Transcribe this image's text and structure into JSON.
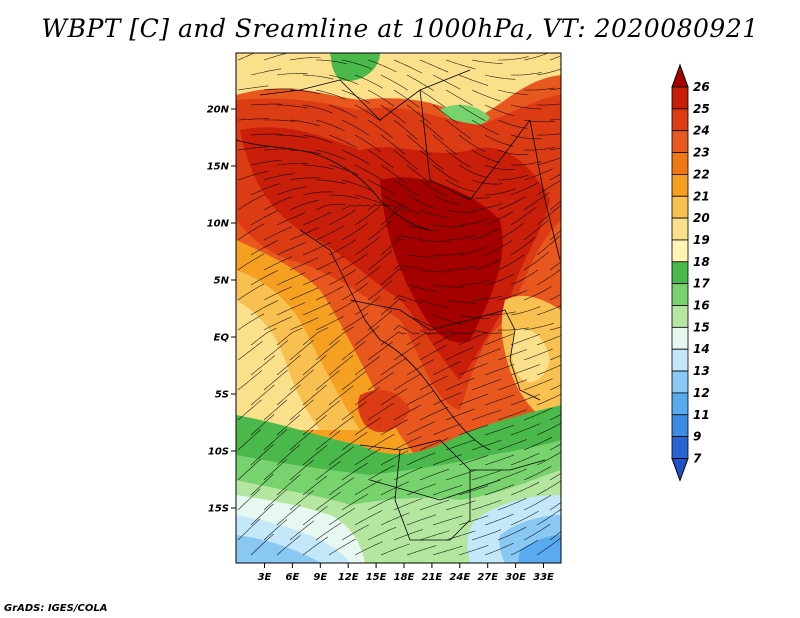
{
  "title": "WBPT [C] and Sreamline at 1000hPa, VT: 2020080921",
  "footer": "GrADS: IGES/COLA",
  "map": {
    "lat_ticks": [
      {
        "lat": 20,
        "label": "20N"
      },
      {
        "lat": 15,
        "label": "15N"
      },
      {
        "lat": 10,
        "label": "10N"
      },
      {
        "lat": 5,
        "label": "5N"
      },
      {
        "lat": 0,
        "label": "EQ"
      },
      {
        "lat": -5,
        "label": "5S"
      },
      {
        "lat": -10,
        "label": "10S"
      },
      {
        "lat": -15,
        "label": "15S"
      }
    ],
    "lon_ticks": [
      {
        "lon": 3,
        "label": "3E"
      },
      {
        "lon": 6,
        "label": "6E"
      },
      {
        "lon": 9,
        "label": "9E"
      },
      {
        "lon": 12,
        "label": "12E"
      },
      {
        "lon": 15,
        "label": "15E"
      },
      {
        "lon": 18,
        "label": "18E"
      },
      {
        "lon": 21,
        "label": "21E"
      },
      {
        "lon": 24,
        "label": "24E"
      },
      {
        "lon": 27,
        "label": "27E"
      },
      {
        "lon": 30,
        "label": "30E"
      },
      {
        "lon": 33,
        "label": "33E"
      }
    ]
  },
  "colorbar": {
    "labels": [
      "26",
      "25",
      "24",
      "23",
      "22",
      "21",
      "20",
      "19",
      "18",
      "17",
      "16",
      "15",
      "14",
      "13",
      "12",
      "11",
      "9",
      "7"
    ],
    "colors": [
      "#a50000",
      "#c81e0a",
      "#dc3c14",
      "#e8581e",
      "#f07814",
      "#f5a020",
      "#f8c050",
      "#fbe08c",
      "#fff4b4",
      "#4ab84a",
      "#78d26e",
      "#b4e6a0",
      "#e6f8f0",
      "#c4e8fa",
      "#8ac8f4",
      "#5aaaf0",
      "#3c8ce6",
      "#2864d2",
      "#1e50c8"
    ]
  }
}
